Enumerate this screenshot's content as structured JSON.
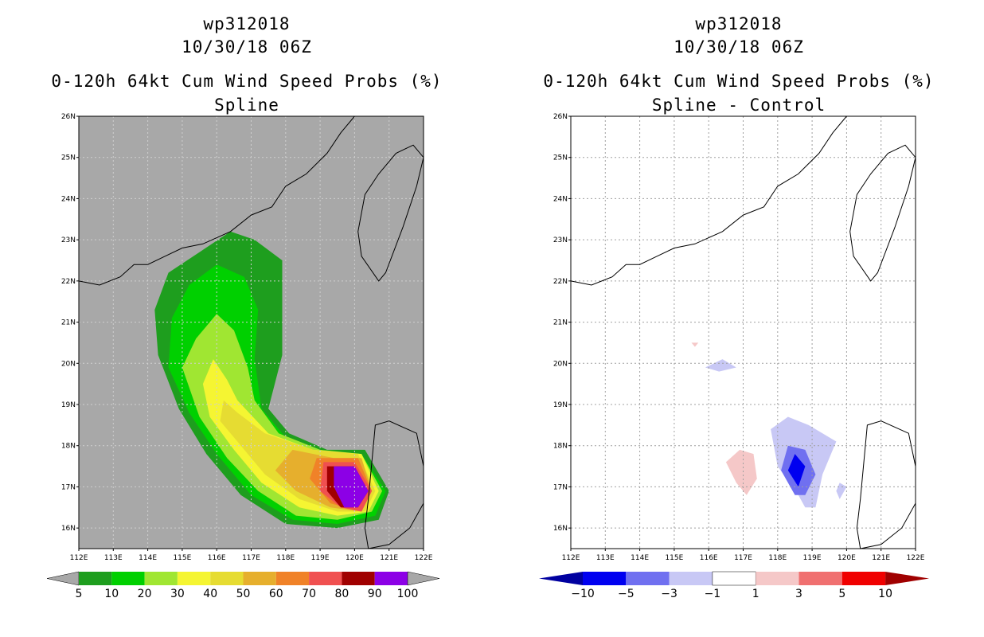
{
  "chart_data": [
    {
      "type": "contour-map",
      "storm_id": "wp312018",
      "datetime": "10/30/18 06Z",
      "title": "0-120h 64kt Cum Wind Speed Probs (%)",
      "subtitle": "Spline",
      "lon_ticks": [
        "112E",
        "113E",
        "114E",
        "115E",
        "116E",
        "117E",
        "118E",
        "119E",
        "120E",
        "121E",
        "122E"
      ],
      "lat_ticks": [
        "16N",
        "17N",
        "18N",
        "19N",
        "20N",
        "21N",
        "22N",
        "23N",
        "24N",
        "25N",
        "26N"
      ],
      "xlim": [
        112,
        122
      ],
      "ylim": [
        15.5,
        26
      ],
      "colorbar": {
        "labels": [
          "5",
          "10",
          "20",
          "30",
          "40",
          "50",
          "60",
          "70",
          "80",
          "90",
          "100"
        ],
        "colors": [
          "#1e9e1e",
          "#00d000",
          "#a0e632",
          "#f5f532",
          "#e6dc32",
          "#e6af2d",
          "#f08228",
          "#f05050",
          "#a00000",
          "#8c00e6"
        ]
      },
      "contours": [
        {
          "level": "5",
          "color": "#1e9e1e",
          "points": [
            [
              116.4,
              23.2
            ],
            [
              117.1,
              23
            ],
            [
              117.9,
              22.5
            ],
            [
              117.9,
              20.2
            ],
            [
              117.5,
              18.9
            ],
            [
              118.1,
              18.3
            ],
            [
              119.2,
              17.9
            ],
            [
              120.3,
              17.9
            ],
            [
              121,
              16.9
            ],
            [
              120.7,
              16.2
            ],
            [
              119.5,
              16
            ],
            [
              118,
              16.1
            ],
            [
              116.7,
              16.8
            ],
            [
              115.7,
              17.8
            ],
            [
              114.9,
              18.9
            ],
            [
              114.3,
              20.2
            ],
            [
              114.2,
              21.3
            ],
            [
              114.6,
              22.2
            ],
            [
              115.5,
              22.7
            ]
          ]
        },
        {
          "level": "10",
          "color": "#00d000",
          "points": [
            [
              116,
              22.4
            ],
            [
              116.8,
              22.1
            ],
            [
              117.2,
              21.3
            ],
            [
              117.1,
              20.1
            ],
            [
              117.3,
              18.9
            ],
            [
              118,
              18.2
            ],
            [
              119.2,
              17.8
            ],
            [
              120.2,
              17.8
            ],
            [
              120.9,
              16.9
            ],
            [
              120.6,
              16.3
            ],
            [
              119.5,
              16.1
            ],
            [
              118.2,
              16.2
            ],
            [
              117,
              16.8
            ],
            [
              116,
              17.8
            ],
            [
              115.2,
              18.8
            ],
            [
              114.6,
              19.9
            ],
            [
              114.7,
              21.1
            ],
            [
              115.2,
              21.9
            ]
          ]
        },
        {
          "level": "20",
          "color": "#a0e632",
          "points": [
            [
              116,
              21.2
            ],
            [
              116.5,
              20.8
            ],
            [
              116.9,
              19.9
            ],
            [
              117.1,
              19.1
            ],
            [
              117.8,
              18.3
            ],
            [
              119,
              17.9
            ],
            [
              120.2,
              17.8
            ],
            [
              120.8,
              16.9
            ],
            [
              120.5,
              16.4
            ],
            [
              119.5,
              16.2
            ],
            [
              118.3,
              16.3
            ],
            [
              117.2,
              16.9
            ],
            [
              116.3,
              17.7
            ],
            [
              115.5,
              18.7
            ],
            [
              115,
              19.9
            ],
            [
              115.4,
              20.6
            ]
          ]
        },
        {
          "level": "30",
          "color": "#f5f532",
          "points": [
            [
              115.9,
              20.1
            ],
            [
              116.3,
              19.6
            ],
            [
              116.6,
              19.1
            ],
            [
              117.5,
              18.3
            ],
            [
              118.8,
              17.9
            ],
            [
              120.2,
              17.8
            ],
            [
              120.7,
              16.9
            ],
            [
              120.4,
              16.4
            ],
            [
              119.5,
              16.3
            ],
            [
              118.4,
              16.5
            ],
            [
              117.3,
              17.1
            ],
            [
              116.5,
              17.9
            ],
            [
              115.8,
              18.7
            ],
            [
              115.6,
              19.5
            ]
          ]
        },
        {
          "level": "40",
          "color": "#e6dc32",
          "points": [
            [
              116.2,
              19.1
            ],
            [
              116.6,
              18.8
            ],
            [
              117.4,
              18.3
            ],
            [
              118.8,
              17.9
            ],
            [
              120.1,
              17.8
            ],
            [
              120.6,
              16.9
            ],
            [
              120.3,
              16.4
            ],
            [
              119.5,
              16.4
            ],
            [
              118.4,
              16.7
            ],
            [
              117.4,
              17.3
            ],
            [
              116.6,
              18.1
            ],
            [
              116.1,
              18.6
            ]
          ]
        },
        {
          "level": "50",
          "color": "#e6af2d",
          "points": [
            [
              118.2,
              17.9
            ],
            [
              119.4,
              17.7
            ],
            [
              120.2,
              17.7
            ],
            [
              120.5,
              16.9
            ],
            [
              120.2,
              16.4
            ],
            [
              119.3,
              16.5
            ],
            [
              118.3,
              16.9
            ],
            [
              117.7,
              17.4
            ]
          ]
        },
        {
          "level": "60",
          "color": "#f08228",
          "points": [
            [
              118.9,
              17.7
            ],
            [
              120.1,
              17.7
            ],
            [
              120.5,
              16.9
            ],
            [
              120.2,
              16.4
            ],
            [
              119.3,
              16.6
            ],
            [
              118.7,
              17.2
            ]
          ]
        },
        {
          "level": "70",
          "color": "#f05050",
          "points": [
            [
              119.1,
              17.6
            ],
            [
              120,
              17.6
            ],
            [
              120.5,
              16.9
            ],
            [
              120.2,
              16.4
            ],
            [
              119.6,
              16.5
            ],
            [
              119,
              16.9
            ]
          ]
        },
        {
          "level": "80",
          "color": "#a00000",
          "points": [
            [
              119.2,
              17.5
            ],
            [
              120,
              17.5
            ],
            [
              120.4,
              16.9
            ],
            [
              120.1,
              16.5
            ],
            [
              119.6,
              16.5
            ],
            [
              119.2,
              16.9
            ]
          ]
        },
        {
          "level": "90",
          "color": "#8c00e6",
          "points": [
            [
              119.4,
              17.5
            ],
            [
              120,
              17.5
            ],
            [
              120.4,
              16.9
            ],
            [
              120.1,
              16.5
            ],
            [
              119.7,
              16.5
            ],
            [
              119.4,
              17
            ]
          ]
        }
      ]
    },
    {
      "type": "contour-map",
      "storm_id": "wp312018",
      "datetime": "10/30/18 06Z",
      "title": "0-120h 64kt Cum Wind Speed Probs (%)",
      "subtitle": "Spline - Control",
      "lon_ticks": [
        "112E",
        "113E",
        "114E",
        "115E",
        "116E",
        "117E",
        "118E",
        "119E",
        "120E",
        "121E",
        "122E"
      ],
      "lat_ticks": [
        "16N",
        "17N",
        "18N",
        "19N",
        "20N",
        "21N",
        "22N",
        "23N",
        "24N",
        "25N",
        "26N"
      ],
      "xlim": [
        112,
        122
      ],
      "ylim": [
        15.5,
        26
      ],
      "colorbar": {
        "labels": [
          "-10",
          "-5",
          "-3",
          "-1",
          "1",
          "3",
          "5",
          "10"
        ],
        "colors": [
          "#0000a0",
          "#0000f0",
          "#7070f0",
          "#c8c8f5",
          "#ffffff",
          "#f5c8c8",
          "#f07070",
          "#f00000",
          "#a00000"
        ]
      },
      "contours": [
        {
          "level": "-3",
          "color": "#c8c8f5",
          "points": [
            [
              118.3,
              18.7
            ],
            [
              118.9,
              18.5
            ],
            [
              119.7,
              18.1
            ],
            [
              119.3,
              17.3
            ],
            [
              119.1,
              16.5
            ],
            [
              118.8,
              16.5
            ],
            [
              118.6,
              16.8
            ],
            [
              118,
              17.5
            ],
            [
              117.8,
              18.4
            ]
          ]
        },
        {
          "level": "-3",
          "color": "#c8c8f5",
          "points": [
            [
              115.9,
              19.9
            ],
            [
              116.4,
              20.1
            ],
            [
              116.8,
              19.9
            ],
            [
              116.3,
              19.8
            ]
          ]
        },
        {
          "level": "-3",
          "color": "#c8c8f5",
          "points": [
            [
              119.8,
              17.1
            ],
            [
              120,
              17
            ],
            [
              119.8,
              16.7
            ],
            [
              119.7,
              16.9
            ]
          ]
        },
        {
          "level": "-5",
          "color": "#7070f0",
          "points": [
            [
              118.2,
              18
            ]
          ],
          "note": "inner"
        },
        {
          "level": "1",
          "color": "#f5c8c8",
          "points": [
            [
              116.9,
              17.9
            ],
            [
              117.3,
              17.8
            ],
            [
              117.4,
              17.2
            ],
            [
              117.1,
              16.8
            ],
            [
              116.8,
              17.1
            ],
            [
              116.5,
              17.6
            ]
          ]
        },
        {
          "level": "1",
          "color": "#f5c8c8",
          "points": [
            [
              115.5,
              20.5
            ],
            [
              115.7,
              20.5
            ],
            [
              115.6,
              20.4
            ]
          ]
        }
      ]
    }
  ]
}
